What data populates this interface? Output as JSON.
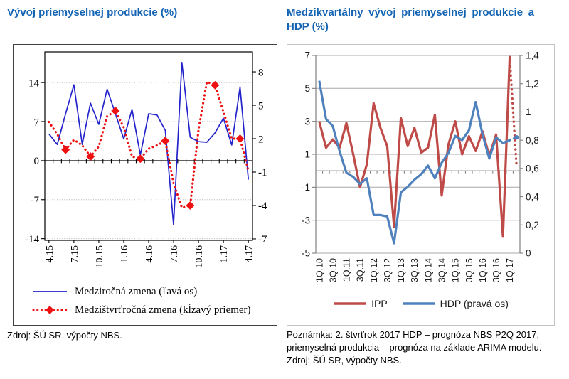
{
  "colors": {
    "title_blue": "#1464B4",
    "left_chart_blue": "#2323CB",
    "left_chart_red": "#EE1111",
    "right_chart_red": "#BE4B48",
    "right_chart_blue": "#4F81BD"
  },
  "left_figure": {
    "source": "Zdroj: ŠÚ SR, výpočty NBS."
  },
  "right_figure": {
    "note_lines": [
      "Poznámka: 2. štvrťrok 2017 HDP – prognóza NBS P2Q 2017;",
      "priemyselná produkcia – prognóza na základe ARIMA modelu.",
      "Zdroj: ŠÚ SR, výpočty NBS."
    ]
  },
  "chart_data": [
    {
      "type": "line",
      "title": "Vývoj priemyselnej produkcie (%)",
      "xlabel": "",
      "grid": "on",
      "legend_position": "bottom",
      "x_labels_shown_every": 3,
      "categories": [
        "4.15",
        "5.15",
        "6.15",
        "7.15",
        "8.15",
        "9.15",
        "10.15",
        "11.15",
        "12.15",
        "1.16",
        "2.16",
        "3.16",
        "4.16",
        "5.16",
        "6.16",
        "7.16",
        "8.16",
        "9.16",
        "10.16",
        "11.16",
        "12.16",
        "1.17",
        "2.17",
        "3.17",
        "4.17"
      ],
      "left_axis": {
        "min": -14.3,
        "max": 19.5,
        "ticks": [
          14,
          7,
          0,
          -7,
          -14
        ],
        "grid": [
          14,
          7,
          -7,
          -14
        ]
      },
      "right_axis": {
        "min": -7.13,
        "max": 9.79,
        "ticks": [
          8,
          5,
          2,
          -1,
          -4,
          -7
        ]
      },
      "series": [
        {
          "name": "Medziročná zmena (ľavá os)",
          "axis": "left",
          "color": "#2323CB",
          "style": "solid",
          "values": [
            4.8,
            2.9,
            8.4,
            13.6,
            2.9,
            10.3,
            6.5,
            12.8,
            8.4,
            3.9,
            9.2,
            1.0,
            8.4,
            8.2,
            5.4,
            -11.5,
            17.6,
            4.2,
            3.4,
            3.3,
            5.0,
            7.6,
            2.8,
            13.2,
            -3.4
          ]
        },
        {
          "name": "Medzištvrťročná zmena (kĺzavý priemer)",
          "axis": "right",
          "color": "#EE1111",
          "style": "dots",
          "marker": "diamond",
          "marker_offset": 2,
          "marker_every": 3,
          "values": [
            3.5,
            2.4,
            1.0,
            1.9,
            1.4,
            0.4,
            1.3,
            4.0,
            4.5,
            3.0,
            0.4,
            0.2,
            1.1,
            1.4,
            1.8,
            -2.0,
            -4.2,
            -4.0,
            2.8,
            7.1,
            6.8,
            4.4,
            2.0,
            2.0,
            -0.9
          ]
        }
      ]
    },
    {
      "type": "line",
      "title": "Medzikvartálny vývoj priemyselnej produkcie a HDP (%)",
      "xlabel": "",
      "grid": "on",
      "legend_position": "bottom",
      "x_labels_shown_every": 2,
      "categories": [
        "1Q.10",
        "2Q.10",
        "3Q.10",
        "4Q.10",
        "1Q.11",
        "2Q.11",
        "3Q.11",
        "4Q.11",
        "1Q.12",
        "2Q.12",
        "3Q.12",
        "4Q.12",
        "1Q.13",
        "2Q.13",
        "3Q.13",
        "4Q.13",
        "1Q.14",
        "2Q.14",
        "3Q.14",
        "4Q.14",
        "1Q.15",
        "2Q.15",
        "3Q.15",
        "4Q.15",
        "1Q.16",
        "2Q.16",
        "3Q.16",
        "4Q.16",
        "1Q.17",
        "2Q.17"
      ],
      "left_axis": {
        "min": -5,
        "max": 7,
        "ticks": [
          7,
          5,
          3,
          1,
          -1,
          -3,
          -5
        ],
        "grid": [
          7,
          5,
          3,
          1,
          -1,
          -3,
          -5
        ]
      },
      "right_axis": {
        "min": 0,
        "max": 1.4,
        "ticks": [
          1.4,
          1.2,
          1.0,
          0.8,
          0.6,
          0.4,
          0.2,
          0
        ],
        "tick_labels": [
          "1,4",
          "1,2",
          "1",
          "0,8",
          "0,6",
          "0,4",
          "0,2",
          "0"
        ]
      },
      "series": [
        {
          "name": "IPP",
          "axis": "left",
          "color": "#BE4B48",
          "style": "solid",
          "forecast_from": 28,
          "values": [
            3.0,
            1.4,
            1.9,
            1.4,
            2.9,
            1.0,
            -1.0,
            0.4,
            4.1,
            2.6,
            1.5,
            -3.4,
            3.2,
            1.5,
            2.6,
            1.1,
            1.4,
            3.4,
            -1.5,
            1.6,
            3.0,
            1.0,
            2.1,
            1.2,
            2.4,
            0.9,
            2.2,
            -4.0,
            6.9,
            0.3
          ]
        },
        {
          "name": "HDP (pravá os)",
          "axis": "right",
          "color": "#4F81BD",
          "style": "solid",
          "forecast_from": 28,
          "end_marker": true,
          "values": [
            1.22,
            0.95,
            0.9,
            0.72,
            0.57,
            0.54,
            0.49,
            0.53,
            0.27,
            0.27,
            0.26,
            0.07,
            0.43,
            0.47,
            0.52,
            0.56,
            0.62,
            0.53,
            0.64,
            0.71,
            0.83,
            0.8,
            0.87,
            1.07,
            0.84,
            0.67,
            0.82,
            0.78,
            0.8,
            0.82
          ]
        }
      ]
    }
  ]
}
